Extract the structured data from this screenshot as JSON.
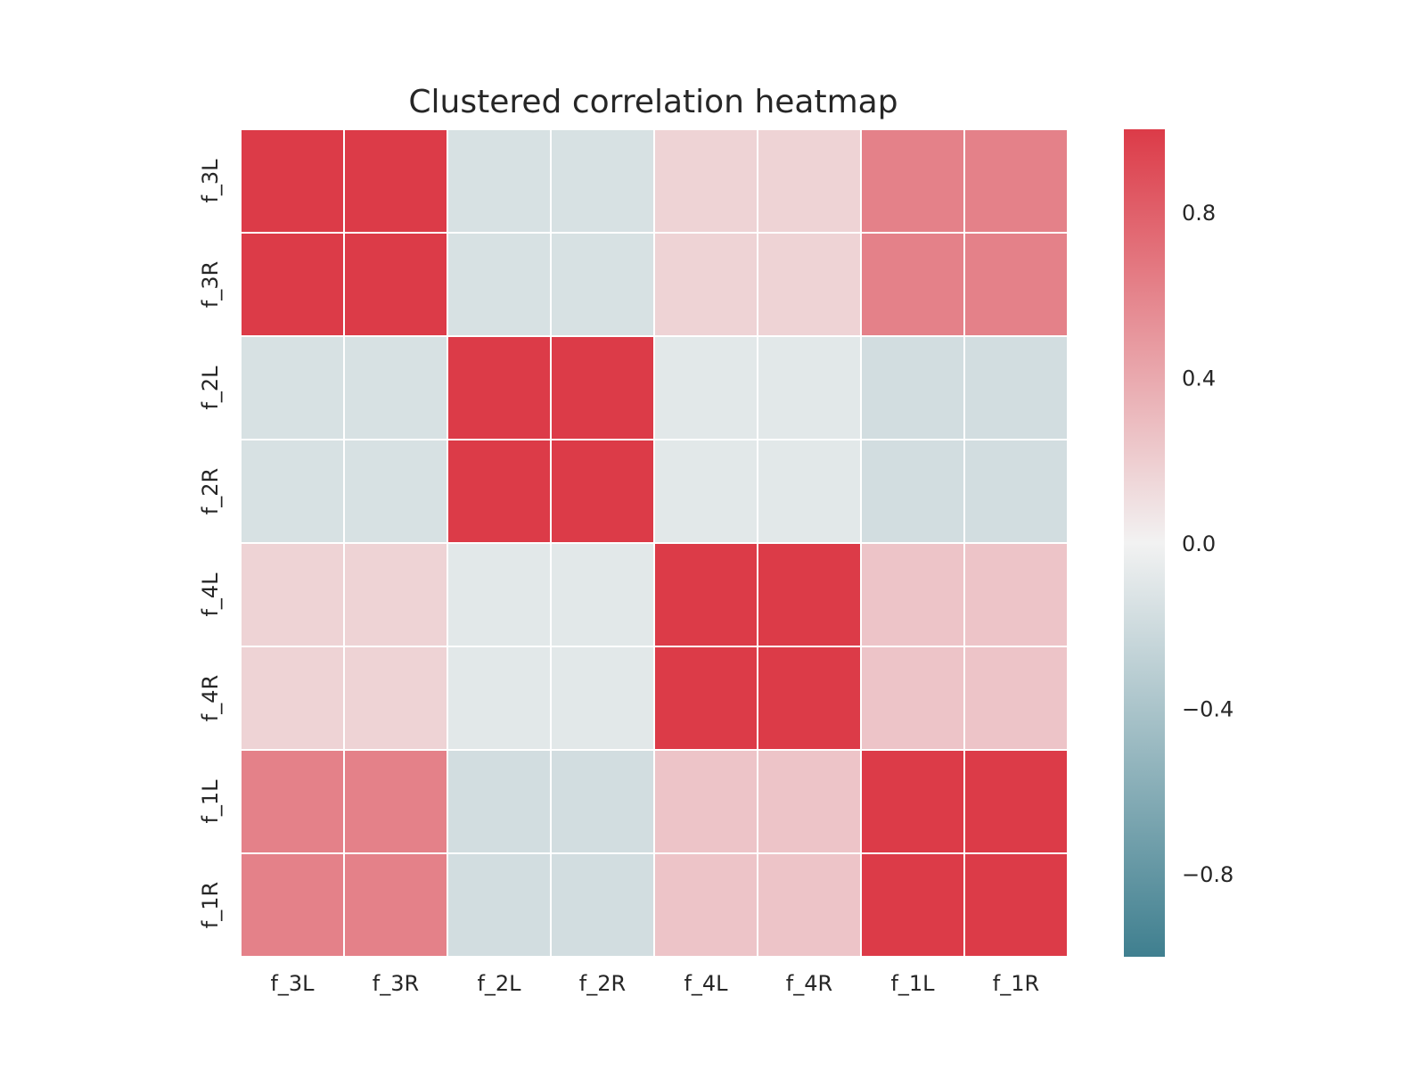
{
  "chart_data": {
    "type": "heatmap",
    "title": "Clustered correlation heatmap",
    "xlabel": "",
    "ylabel": "",
    "row_labels": [
      "f_3L",
      "f_3R",
      "f_2L",
      "f_2R",
      "f_4L",
      "f_4R",
      "f_1L",
      "f_1R"
    ],
    "col_labels": [
      "f_3L",
      "f_3R",
      "f_2L",
      "f_2R",
      "f_4L",
      "f_4R",
      "f_1L",
      "f_1R"
    ],
    "values": [
      [
        1.0,
        1.0,
        -0.15,
        -0.15,
        0.17,
        0.17,
        0.62,
        0.62
      ],
      [
        1.0,
        1.0,
        -0.15,
        -0.15,
        0.17,
        0.17,
        0.62,
        0.62
      ],
      [
        -0.15,
        -0.15,
        1.0,
        1.0,
        -0.09,
        -0.09,
        -0.18,
        -0.18
      ],
      [
        -0.15,
        -0.15,
        1.0,
        1.0,
        -0.09,
        -0.09,
        -0.18,
        -0.18
      ],
      [
        0.17,
        0.17,
        -0.09,
        -0.09,
        1.0,
        1.0,
        0.25,
        0.25
      ],
      [
        0.17,
        0.17,
        -0.09,
        -0.09,
        1.0,
        1.0,
        0.25,
        0.25
      ],
      [
        0.62,
        0.62,
        -0.18,
        -0.18,
        0.25,
        0.25,
        1.0,
        1.0
      ],
      [
        0.62,
        0.62,
        -0.18,
        -0.18,
        0.25,
        0.25,
        1.0,
        1.0
      ]
    ],
    "vmin": -1,
    "vmax": 1,
    "colormap": {
      "negative": "#3f7f8f",
      "center": "#f2f2f2",
      "positive": "#dc3b48"
    },
    "colorbar": {
      "ticks": [
        0.8,
        0.4,
        0.0,
        -0.4,
        -0.8
      ],
      "tick_labels": [
        "0.8",
        "0.4",
        "0.0",
        "−0.4",
        "−0.8"
      ]
    }
  }
}
